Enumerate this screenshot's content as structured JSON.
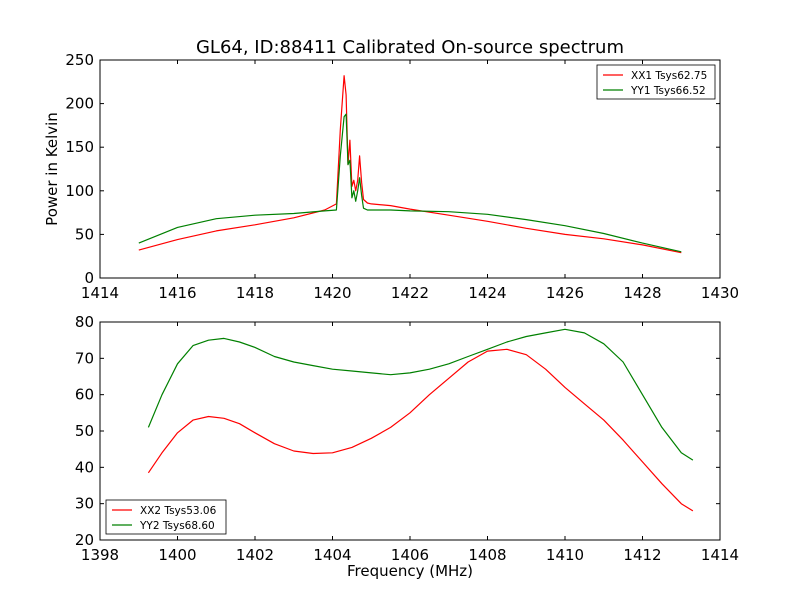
{
  "figure": {
    "title": "GL64, ID:88411 Calibrated On-source spectrum"
  },
  "chart_data": [
    {
      "type": "line",
      "xlabel": "",
      "ylabel": "Power in Kelvin",
      "xlim": [
        1414,
        1430
      ],
      "ylim": [
        0,
        250
      ],
      "xticks": [
        1414,
        1416,
        1418,
        1420,
        1422,
        1424,
        1426,
        1428,
        1430
      ],
      "yticks": [
        0,
        50,
        100,
        150,
        200,
        250
      ],
      "legend_location": "top-right",
      "series": [
        {
          "name": "XX1 Tsys62.75",
          "color": "#ff0000",
          "x": [
            1415.0,
            1416.0,
            1417.0,
            1418.0,
            1419.0,
            1419.8,
            1420.1,
            1420.2,
            1420.3,
            1420.35,
            1420.4,
            1420.45,
            1420.5,
            1420.55,
            1420.6,
            1420.65,
            1420.7,
            1420.75,
            1420.8,
            1420.9,
            1421.0,
            1421.5,
            1422.0,
            1423.0,
            1424.0,
            1425.0,
            1426.0,
            1427.0,
            1428.0,
            1429.0
          ],
          "y": [
            32,
            44,
            54,
            61,
            69,
            78,
            85,
            170,
            232,
            210,
            130,
            158,
            105,
            112,
            100,
            112,
            140,
            110,
            90,
            86,
            85,
            83,
            79,
            72,
            65,
            57,
            50,
            45,
            38,
            29
          ]
        },
        {
          "name": "YY1 Tsys66.52",
          "color": "#008000",
          "x": [
            1415.0,
            1416.0,
            1417.0,
            1418.0,
            1419.0,
            1419.8,
            1420.1,
            1420.2,
            1420.3,
            1420.35,
            1420.4,
            1420.45,
            1420.5,
            1420.55,
            1420.6,
            1420.65,
            1420.7,
            1420.75,
            1420.8,
            1420.9,
            1421.0,
            1421.5,
            1422.0,
            1423.0,
            1424.0,
            1425.0,
            1426.0,
            1427.0,
            1428.0,
            1429.0
          ],
          "y": [
            40,
            58,
            68,
            72,
            74,
            77,
            78,
            140,
            185,
            188,
            130,
            135,
            92,
            100,
            88,
            100,
            115,
            95,
            80,
            78,
            78,
            78,
            77,
            76,
            73,
            67,
            60,
            51,
            40,
            30
          ]
        }
      ]
    },
    {
      "type": "line",
      "xlabel": "Frequency (MHz)",
      "ylabel": "",
      "xlim": [
        1398,
        1414
      ],
      "ylim": [
        20,
        80
      ],
      "xticks": [
        1398,
        1400,
        1402,
        1404,
        1406,
        1408,
        1410,
        1412,
        1414
      ],
      "yticks": [
        20,
        30,
        40,
        50,
        60,
        70,
        80
      ],
      "legend_location": "bottom-left",
      "series": [
        {
          "name": "XX2 Tsys53.06",
          "color": "#ff0000",
          "x": [
            1399.25,
            1399.6,
            1400.0,
            1400.4,
            1400.8,
            1401.2,
            1401.6,
            1402.0,
            1402.5,
            1403.0,
            1403.5,
            1404.0,
            1404.5,
            1405.0,
            1405.5,
            1406.0,
            1406.5,
            1407.0,
            1407.5,
            1408.0,
            1408.5,
            1409.0,
            1409.5,
            1410.0,
            1410.5,
            1411.0,
            1411.5,
            1412.0,
            1412.5,
            1413.0,
            1413.3
          ],
          "y": [
            38.5,
            44,
            49.5,
            53,
            54,
            53.5,
            52,
            49.5,
            46.5,
            44.5,
            43.8,
            44,
            45.5,
            48,
            51,
            55,
            60,
            64.5,
            69,
            72,
            72.5,
            71,
            67,
            62,
            57.5,
            53,
            47.5,
            41.5,
            35.5,
            30,
            28
          ]
        },
        {
          "name": "YY2 Tsys68.60",
          "color": "#008000",
          "x": [
            1399.25,
            1399.6,
            1400.0,
            1400.4,
            1400.8,
            1401.2,
            1401.6,
            1402.0,
            1402.5,
            1403.0,
            1403.5,
            1404.0,
            1404.5,
            1405.0,
            1405.5,
            1406.0,
            1406.5,
            1407.0,
            1407.5,
            1408.0,
            1408.5,
            1409.0,
            1409.5,
            1410.0,
            1410.5,
            1411.0,
            1411.5,
            1412.0,
            1412.5,
            1413.0,
            1413.3
          ],
          "y": [
            51,
            60,
            68.5,
            73.5,
            75,
            75.5,
            74.5,
            73,
            70.5,
            69,
            68,
            67,
            66.5,
            66,
            65.5,
            66,
            67,
            68.5,
            70.5,
            72.5,
            74.5,
            76,
            77,
            78,
            77,
            74,
            69,
            60,
            51,
            44,
            42
          ]
        }
      ]
    }
  ]
}
